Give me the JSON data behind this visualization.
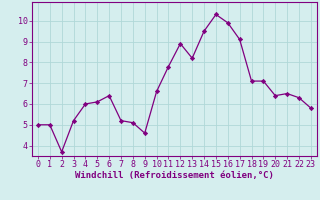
{
  "x": [
    0,
    1,
    2,
    3,
    4,
    5,
    6,
    7,
    8,
    9,
    10,
    11,
    12,
    13,
    14,
    15,
    16,
    17,
    18,
    19,
    20,
    21,
    22,
    23
  ],
  "y": [
    5.0,
    5.0,
    3.7,
    5.2,
    6.0,
    6.1,
    6.4,
    5.2,
    5.1,
    4.6,
    6.6,
    7.8,
    8.9,
    8.2,
    9.5,
    10.3,
    9.9,
    9.1,
    7.1,
    7.1,
    6.4,
    6.5,
    6.3,
    5.8
  ],
  "line_color": "#800080",
  "marker": "D",
  "marker_size": 2.2,
  "bg_color": "#d5eeee",
  "grid_color": "#b0d8d8",
  "xlabel": "Windchill (Refroidissement éolien,°C)",
  "xlim": [
    -0.5,
    23.5
  ],
  "ylim": [
    3.5,
    10.9
  ],
  "yticks": [
    4,
    5,
    6,
    7,
    8,
    9,
    10
  ],
  "xticks": [
    0,
    1,
    2,
    3,
    4,
    5,
    6,
    7,
    8,
    9,
    10,
    11,
    12,
    13,
    14,
    15,
    16,
    17,
    18,
    19,
    20,
    21,
    22,
    23
  ],
  "label_fontsize": 6.5,
  "tick_fontsize": 6.0
}
